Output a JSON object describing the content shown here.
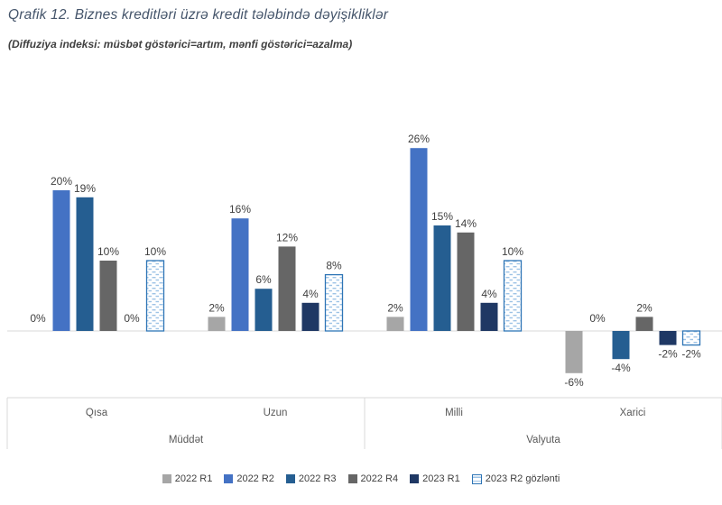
{
  "chart_data": {
    "type": "bar",
    "title": "Qrafik 12. Biznes kreditləri üzrə kredit tələbində dəyişikliklər",
    "subtitle": "(Diffuziya indeksi: müsbət göstərici=artım, mənfi göstərici=azalma)",
    "value_format": "percent",
    "categories": [
      "Qısa",
      "Uzun",
      "Milli",
      "Xarici"
    ],
    "group_axis": [
      {
        "label": "Müddət",
        "categories": [
          "Qısa",
          "Uzun"
        ]
      },
      {
        "label": "Valyuta",
        "categories": [
          "Milli",
          "Xarici"
        ]
      }
    ],
    "series": [
      {
        "name": "2022 R1",
        "color": "#A6A6A6",
        "values": [
          0,
          2,
          2,
          -6
        ]
      },
      {
        "name": "2022 R2",
        "color": "#4472C4",
        "values": [
          20,
          16,
          26,
          0
        ]
      },
      {
        "name": "2022 R3",
        "color": "#255E91",
        "values": [
          19,
          6,
          15,
          -4
        ]
      },
      {
        "name": "2022 R4",
        "color": "#666666",
        "values": [
          10,
          12,
          14,
          2
        ]
      },
      {
        "name": "2023 R1",
        "color": "#1F3864",
        "values": [
          0,
          4,
          4,
          -2
        ]
      },
      {
        "name": "2023 R2 gözlənti",
        "pattern": true,
        "color": "#FFFFFF",
        "values": [
          10,
          8,
          10,
          -2
        ]
      }
    ],
    "pattern": {
      "fill": "#FFFFFF",
      "dash": "#9DC3E6",
      "border": "#2E75B6"
    },
    "ylim": [
      -8,
      28
    ],
    "y_axis_visible": false,
    "grid": false,
    "legend_position": "bottom",
    "colors": {
      "title_text": "#44546A",
      "subtitle_text": "#404040",
      "value_label_text": "#404040",
      "category_label_text": "#595959",
      "axis_line": "#D9D9D9"
    }
  }
}
